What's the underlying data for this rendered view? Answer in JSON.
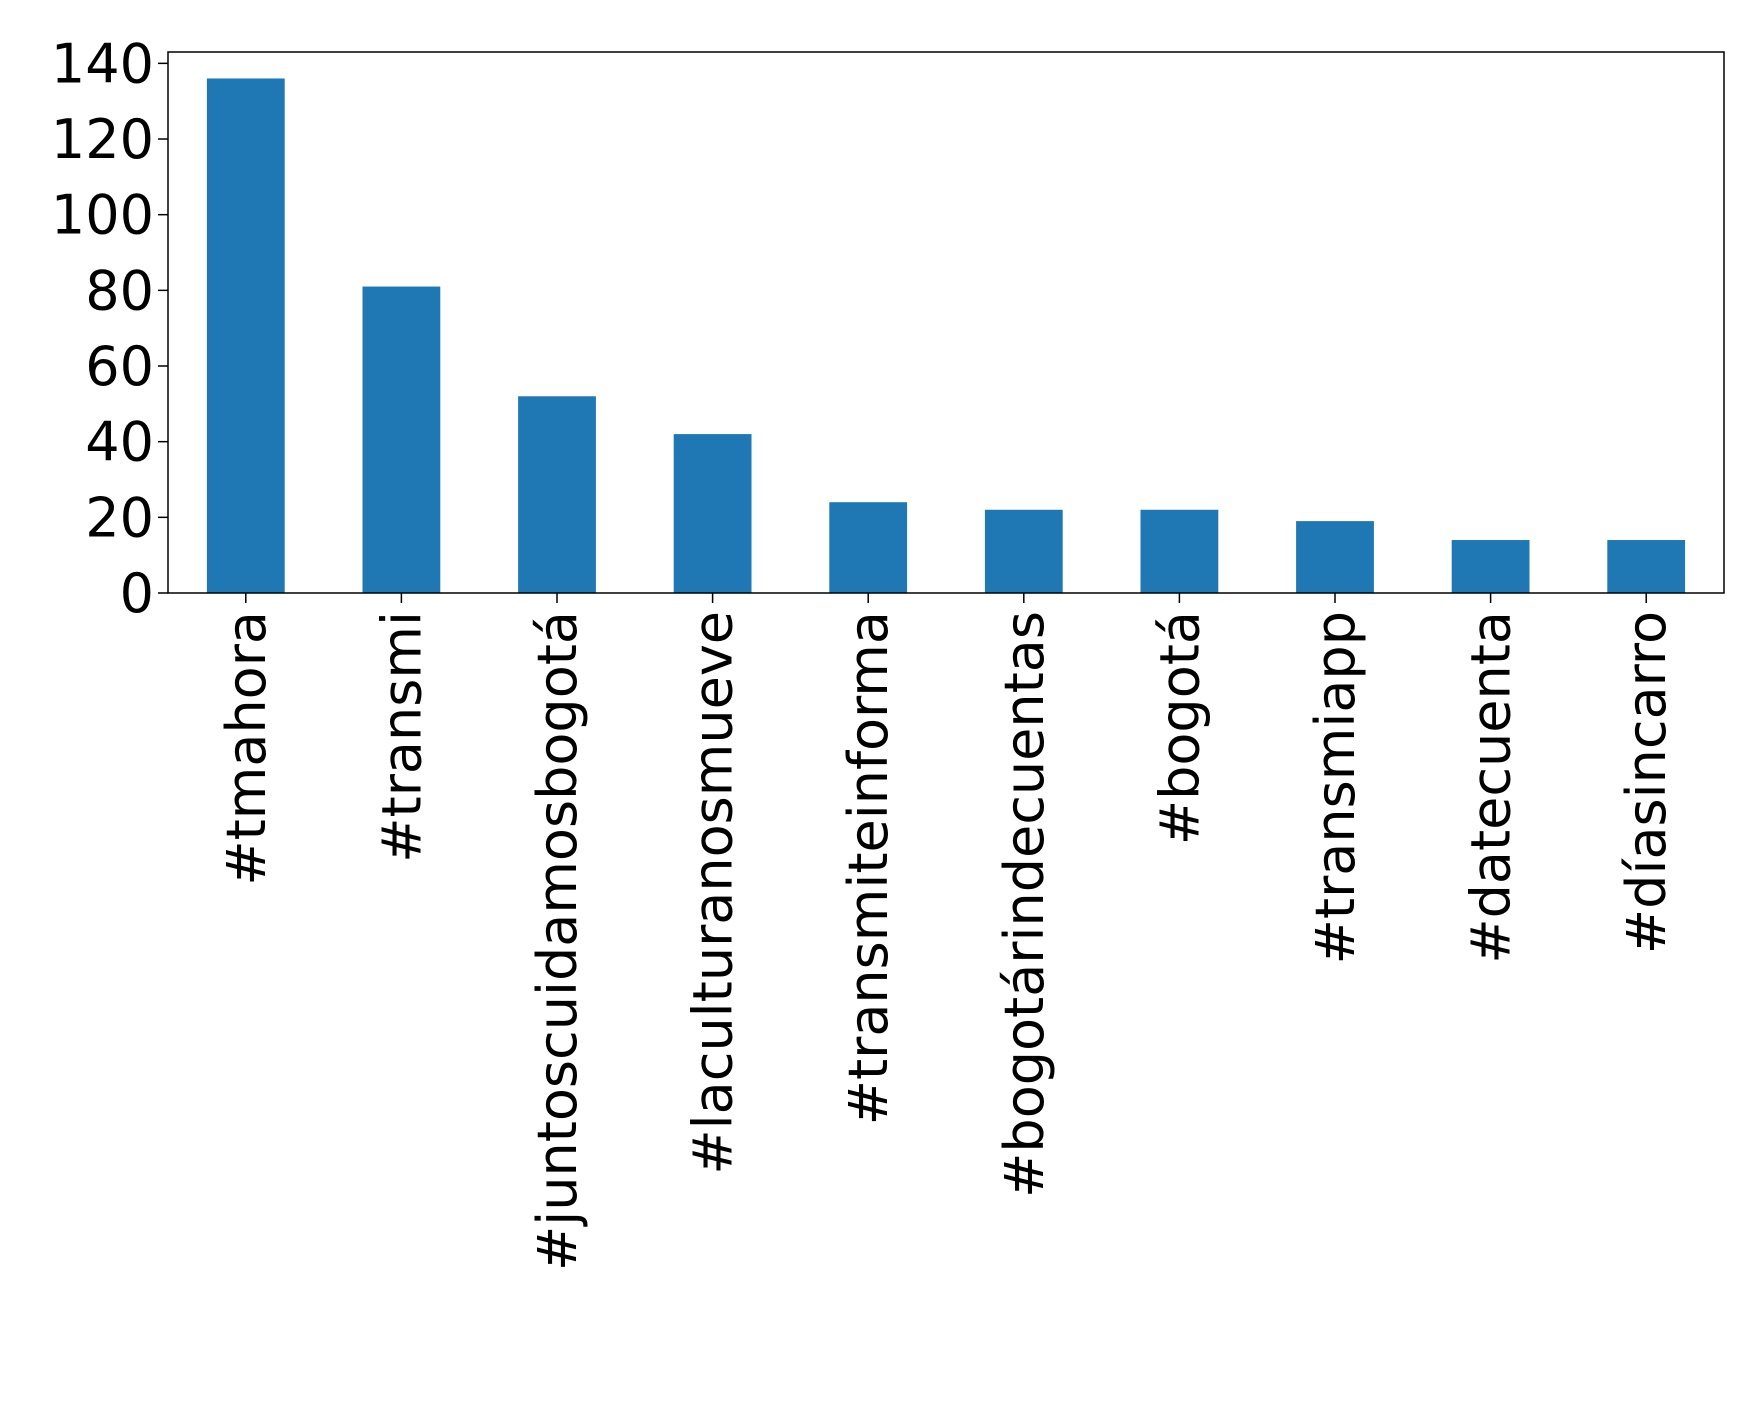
{
  "chart_data": {
    "type": "bar",
    "title": "",
    "xlabel": "",
    "ylabel": "",
    "categories": [
      "#tmahora",
      "#transmi",
      "#juntoscuidamosbogotá",
      "#laculturanosmueve",
      "#transmiteinforma",
      "#bogotárindecuentas",
      "#bogotá",
      "#transmiapp",
      "#datecuenta",
      "#díasincarro"
    ],
    "values": [
      136,
      81,
      52,
      42,
      24,
      22,
      22,
      19,
      14,
      14
    ],
    "ylim": [
      0,
      143
    ],
    "yticks": [
      0,
      20,
      40,
      60,
      80,
      100,
      120,
      140
    ],
    "ytick_labels": [
      "0",
      "20",
      "40",
      "60",
      "80",
      "100",
      "120",
      "140"
    ],
    "bar_color": "#1f77b4",
    "grid": false,
    "legend": "none"
  }
}
